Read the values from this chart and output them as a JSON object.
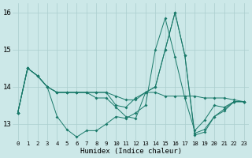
{
  "xlabel": "Humidex (Indice chaleur)",
  "background_color": "#cce8e8",
  "grid_color": "#aacece",
  "line_color": "#1a7a6a",
  "xlim": [
    -0.5,
    23.5
  ],
  "ylim": [
    12.55,
    16.25
  ],
  "yticks": [
    13,
    14,
    15,
    16
  ],
  "xtick_labels": [
    "0",
    "1",
    "2",
    "3",
    "4",
    "5",
    "6",
    "7",
    "8",
    "9",
    "10",
    "11",
    "12",
    "13",
    "14",
    "15",
    "16",
    "17",
    "18",
    "19",
    "20",
    "21",
    "22",
    "23"
  ],
  "series": [
    [
      13.3,
      14.5,
      14.3,
      14.0,
      13.2,
      12.85,
      12.65,
      12.82,
      12.82,
      13.0,
      13.2,
      13.15,
      13.3,
      13.5,
      15.0,
      15.85,
      14.8,
      13.7,
      12.82,
      13.1,
      13.5,
      13.45,
      13.6,
      13.6
    ],
    [
      13.3,
      14.5,
      14.3,
      14.0,
      13.85,
      13.85,
      13.85,
      13.85,
      13.85,
      13.85,
      13.75,
      13.65,
      13.65,
      13.85,
      13.85,
      13.75,
      13.75,
      13.75,
      13.75,
      13.7,
      13.7,
      13.7,
      13.65,
      13.6
    ],
    [
      13.3,
      14.5,
      14.3,
      14.0,
      13.85,
      13.85,
      13.85,
      13.85,
      13.85,
      13.85,
      13.5,
      13.45,
      13.7,
      13.85,
      14.0,
      15.0,
      16.0,
      14.85,
      12.75,
      12.85,
      13.2,
      13.35,
      13.6,
      13.6
    ],
    [
      13.3,
      14.5,
      14.3,
      14.0,
      13.85,
      13.85,
      13.85,
      13.85,
      13.7,
      13.7,
      13.45,
      13.2,
      13.15,
      13.85,
      14.0,
      15.0,
      16.0,
      14.85,
      12.7,
      12.78,
      13.2,
      13.4,
      13.6,
      13.6
    ]
  ]
}
